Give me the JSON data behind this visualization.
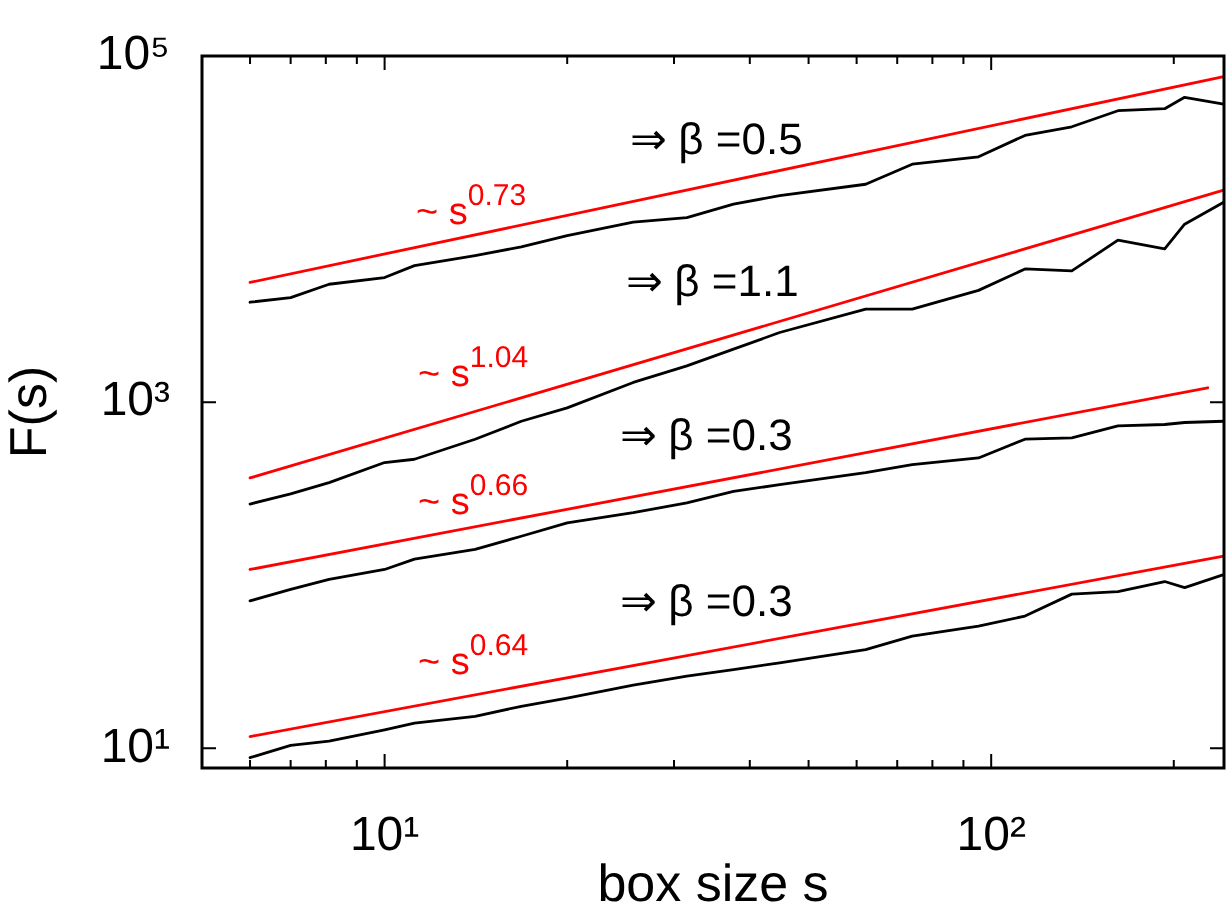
{
  "chart_data": {
    "type": "line",
    "xlabel": "box size s",
    "ylabel": "F(s)",
    "log": "xy",
    "xlim": [
      5,
      242
    ],
    "ylim": [
      7.7,
      100000
    ],
    "xticks": [
      {
        "value": 6,
        "label": null
      },
      {
        "value": 7,
        "label": null
      },
      {
        "value": 8,
        "label": null
      },
      {
        "value": 9,
        "label": null
      },
      {
        "value": 10,
        "label": "10¹"
      },
      {
        "value": 20,
        "label": null
      },
      {
        "value": 30,
        "label": null
      },
      {
        "value": 40,
        "label": null
      },
      {
        "value": 50,
        "label": null
      },
      {
        "value": 60,
        "label": null
      },
      {
        "value": 70,
        "label": null
      },
      {
        "value": 80,
        "label": null
      },
      {
        "value": 90,
        "label": null
      },
      {
        "value": 100,
        "label": "10²"
      },
      {
        "value": 200,
        "label": null
      }
    ],
    "yticks": [
      {
        "value": 10,
        "label": "10¹"
      },
      {
        "value": 1000,
        "label": "10³"
      },
      {
        "value": 100000,
        "label": "10⁵"
      }
    ],
    "x": [
      6.0,
      7.0,
      8.1,
      10,
      11.2,
      14.1,
      16.8,
      20.0,
      25.7,
      31.5,
      37.6,
      44.8,
      62.1,
      74.1,
      95.3,
      113.7,
      135.8,
      161.8,
      193.2,
      208.4,
      241.7
    ],
    "series": [
      {
        "type": "line",
        "color": "#ff0000",
        "x": [
          6.0,
          241.7
        ],
        "values": [
          4920,
          76000
        ]
      },
      {
        "type": "line",
        "color": "#ff0000",
        "x": [
          6.0,
          241.7
        ],
        "values": [
          365,
          16790
        ]
      },
      {
        "type": "line",
        "color": "#ff0000",
        "x": [
          6.0,
          227.5
        ],
        "values": [
          108,
          1211
        ]
      },
      {
        "type": "line",
        "color": "#ff0000",
        "x": [
          6.0,
          241.7
        ],
        "values": [
          11.7,
          129
        ]
      },
      {
        "color": "#000000",
        "values": [
          3780,
          4020,
          4800,
          5250,
          6150,
          7030,
          7890,
          9180,
          10960,
          11660,
          13930,
          15630,
          18160,
          23700,
          26170,
          34770,
          39000,
          48300,
          49600,
          57700,
          52800
        ]
      },
      {
        "color": "#000000",
        "values": [
          258,
          295,
          343,
          448,
          468,
          611,
          776,
          927,
          1300,
          1622,
          2024,
          2527,
          3450,
          3450,
          4425,
          5885,
          5735,
          8630,
          7690,
          10670,
          14290
        ]
      },
      {
        "color": "#000000",
        "values": [
          71.1,
          82.8,
          94.6,
          108,
          124,
          141,
          168,
          201,
          230,
          262,
          305,
          334,
          392,
          436,
          476,
          611,
          622,
          730,
          743,
          763,
          776
        ]
      },
      {
        "color": "#000000",
        "values": [
          8.83,
          10.4,
          11.0,
          12.8,
          14.0,
          15.3,
          17.5,
          19.5,
          23.2,
          26.1,
          28.5,
          31.2,
          37.2,
          44.5,
          50.8,
          58.1,
          77.8,
          80.5,
          92.0,
          84.9,
          101
        ]
      }
    ],
    "annotations": [
      "~ s$^{0.73}$",
      "~ s$^{1.04}$",
      "~ s$^{0.66}$",
      "~ s$^{0.64}$",
      "⇒ β =0.5",
      "⇒ β =1.1",
      "⇒ β =0.3",
      "⇒ β =0.3"
    ]
  }
}
